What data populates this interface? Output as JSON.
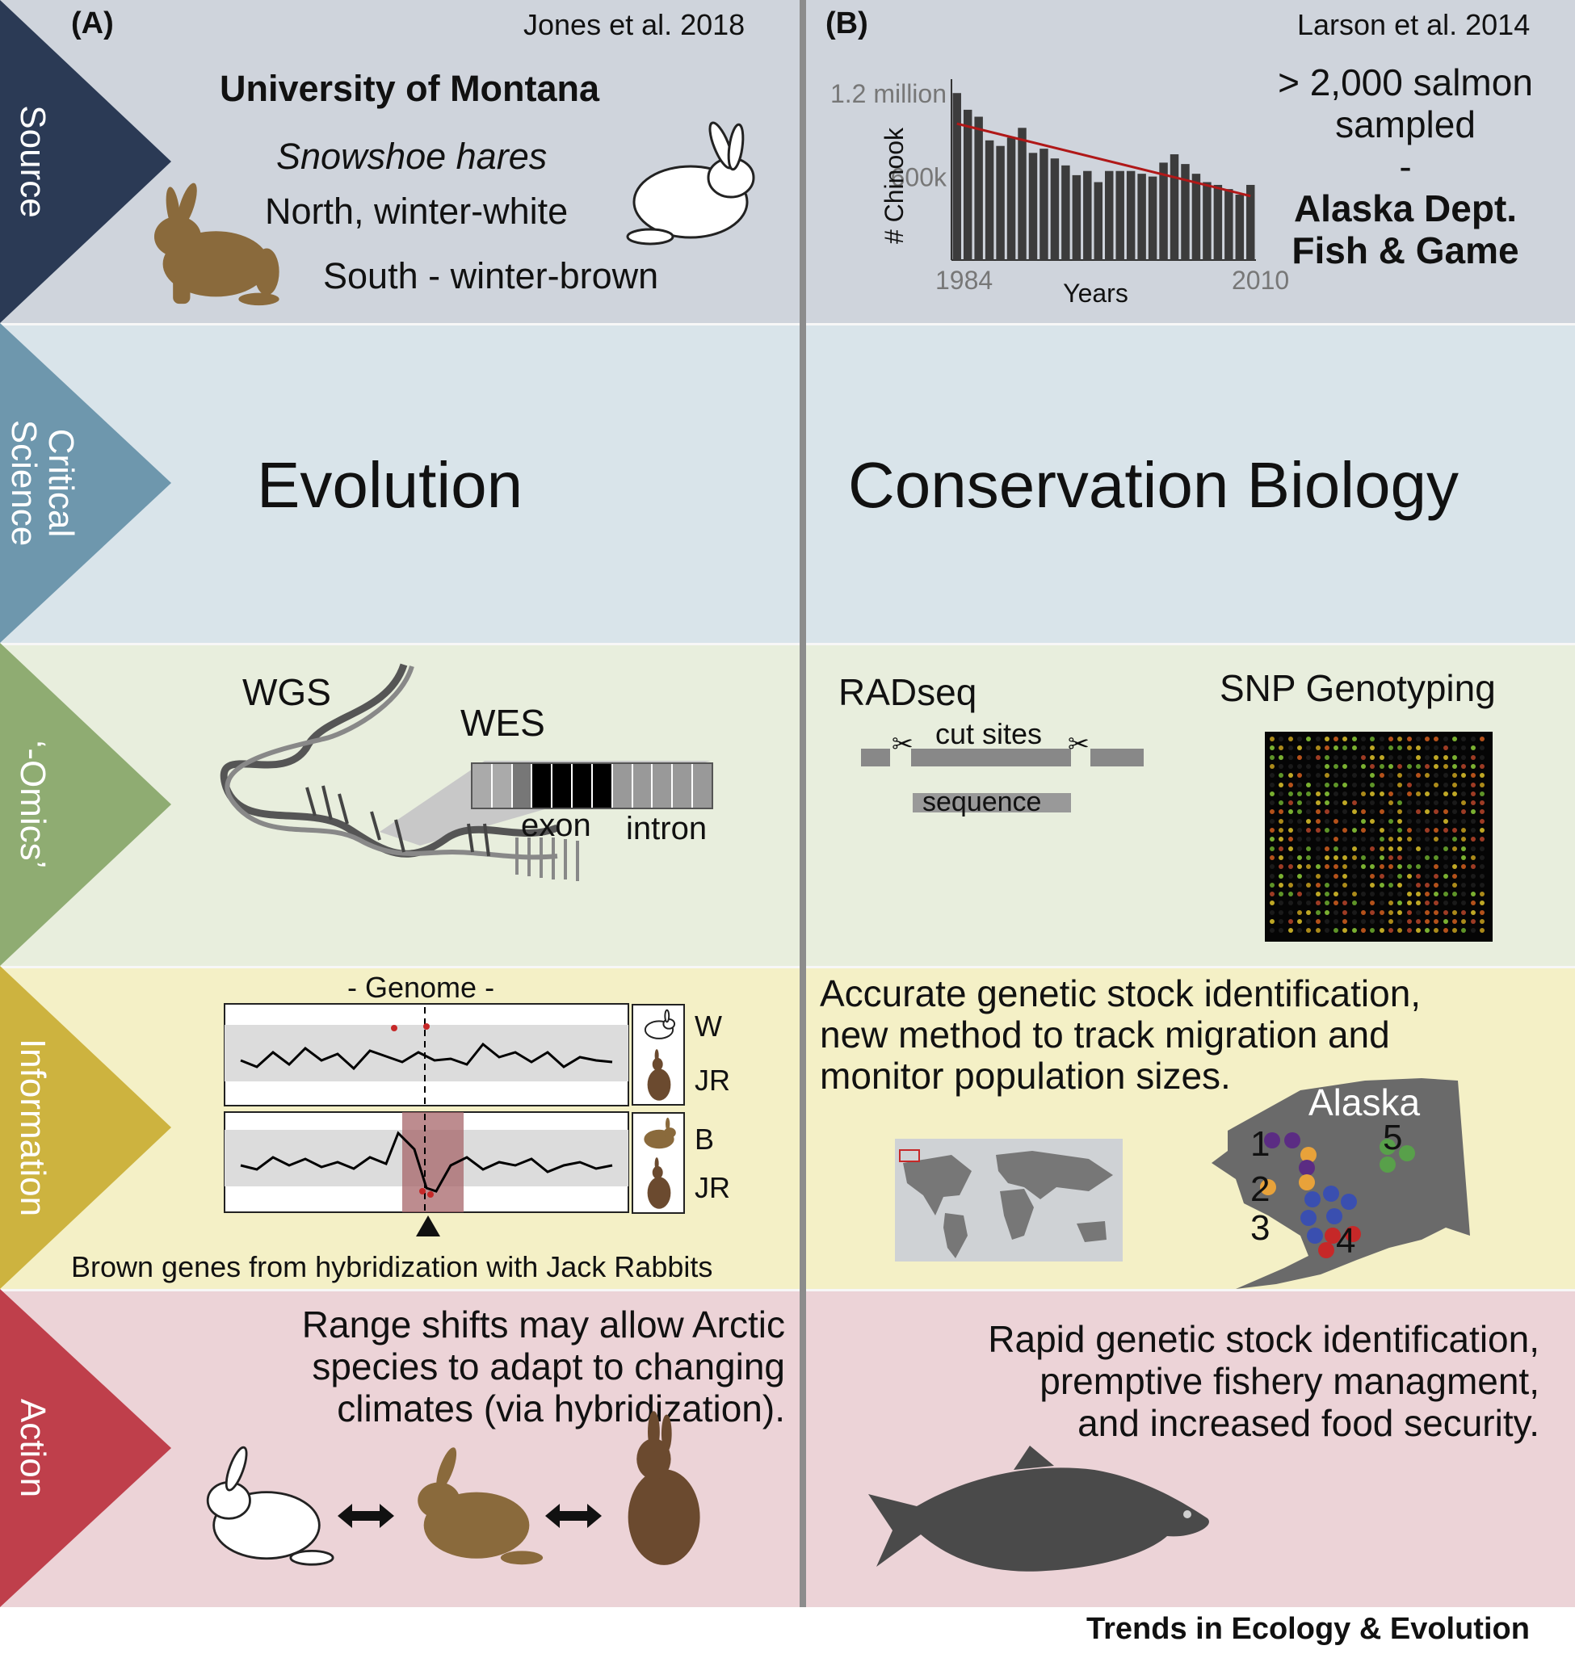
{
  "rows": {
    "source": {
      "label": "Source",
      "color": "#2b3a55"
    },
    "critical": {
      "label_line1": "Critical",
      "label_line2": "Science",
      "color": "#6e97ad"
    },
    "omics": {
      "label": "‘-Omics’",
      "color": "#8fac72"
    },
    "information": {
      "label": "Information",
      "color": "#cdb33f"
    },
    "action": {
      "label": "Action",
      "color": "#bf3f4b"
    }
  },
  "panel_a": {
    "tag": "(A)",
    "citation": "Jones et al. 2018",
    "source": {
      "institution": "University of Montana",
      "species": "Snowshoe hares",
      "north": "North, winter-white",
      "south": "South - winter-brown"
    },
    "critical": "Evolution",
    "omics": {
      "wgs": "WGS",
      "wes": "WES",
      "exon": "exon",
      "intron": "intron"
    },
    "information": {
      "genome_label": "- Genome -",
      "key_w": "W",
      "key_jr1": "JR",
      "key_b": "B",
      "key_jr2": "JR",
      "caption": "Brown genes from hybridization with Jack Rabbits"
    },
    "action": {
      "line1": "Range shifts may allow Arctic",
      "line2": "species to adapt to changing",
      "line3": "climates (via hybridization)."
    }
  },
  "panel_b": {
    "tag": "(B)",
    "citation": "Larson et al. 2014",
    "source": {
      "sampled_line1": "> 2,000 salmon",
      "sampled_line2": "sampled",
      "dash": "-",
      "agency_line1": "Alaska Dept.",
      "agency_line2": "Fish & Game"
    },
    "critical": "Conservation Biology",
    "omics": {
      "radseq": "RADseq",
      "cut_sites": "cut sites",
      "sequence": "sequence",
      "snp": "SNP Genotyping"
    },
    "information": {
      "line1": "Accurate genetic stock identification,",
      "line2": "new method to track migration and",
      "line3": "monitor population sizes.",
      "map_label": "Alaska",
      "regions": [
        "1",
        "2",
        "3",
        "4",
        "5"
      ]
    },
    "action": {
      "line1": "Rapid genetic stock identification,",
      "line2": "premptive fishery managment,",
      "line3": "and increased food security."
    }
  },
  "chart_data": {
    "type": "bar",
    "ylabel": "# Chinook",
    "xlabel": "Years",
    "y_ticks": [
      "1.2 million",
      "600k"
    ],
    "x_ticks": [
      "1984",
      "2010"
    ],
    "x_start": 1984,
    "x_end": 2010,
    "ylim": [
      0,
      1300000
    ],
    "values": [
      1200000,
      1080000,
      1030000,
      860000,
      820000,
      880000,
      950000,
      770000,
      800000,
      730000,
      680000,
      610000,
      640000,
      560000,
      640000,
      640000,
      640000,
      620000,
      600000,
      700000,
      760000,
      690000,
      620000,
      560000,
      540000,
      510000,
      470000,
      540000
    ],
    "trend": {
      "start": 980000,
      "end": 460000
    },
    "bar_color": "#3c3c3c",
    "trend_color": "#b01818"
  },
  "footer": "Trends in Ecology & Evolution"
}
